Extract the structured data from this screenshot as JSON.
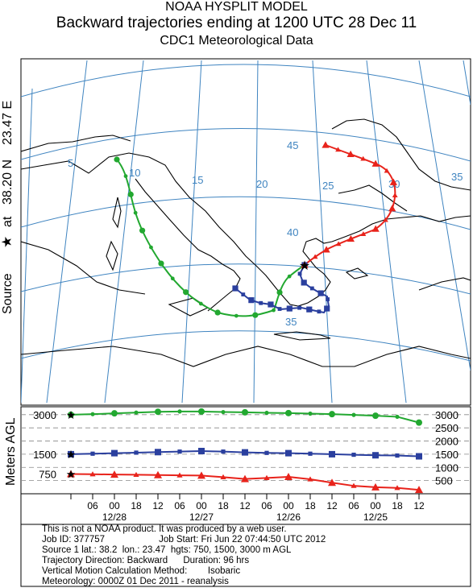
{
  "header": {
    "line1": "NOAA HYSPLIT MODEL",
    "line2": "Backward trajectories ending at 1200 UTC 28 Dec 11",
    "line3": "CDC1 Meteorological Data"
  },
  "side_label": {
    "source": "Source",
    "at": "at",
    "lat": "38.20 N",
    "lon": "23.47 E",
    "vertical_axis": "Meters AGL"
  },
  "map_grid_labels": {
    "longitudes": [
      "5",
      "10",
      "15",
      "20",
      "25",
      "30",
      "35"
    ],
    "latitudes": [
      "45",
      "40",
      "35"
    ]
  },
  "colors": {
    "trajectory_750": "#e8231b",
    "trajectory_1500": "#2a3f9e",
    "trajectory_3000": "#22a830",
    "grid": "#3f84c0",
    "coast": "#000000"
  },
  "chart_data": {
    "type": "line",
    "x_axis_labels": [
      "06",
      "00",
      "18",
      "12",
      "06",
      "00",
      "18",
      "12",
      "06",
      "00",
      "18",
      "12",
      "06",
      "00",
      "18",
      "12"
    ],
    "date_labels": [
      "12/28",
      "12/27",
      "12/26",
      "12/25"
    ],
    "left_tick_labels": [
      "3000",
      "1500",
      "750"
    ],
    "right_tick_labels": [
      "3000",
      "2500",
      "2000",
      "1500",
      "1000",
      "500"
    ],
    "ylim": [
      0,
      3300
    ],
    "series": [
      {
        "name": "3000",
        "color": "#22a830",
        "marker": "circle",
        "hours": [
          0,
          6,
          12,
          18,
          24,
          30,
          36,
          42,
          48,
          54,
          60,
          66,
          72,
          78,
          84,
          90,
          96
        ],
        "values": [
          3000,
          3020,
          3050,
          3080,
          3110,
          3120,
          3120,
          3100,
          3090,
          3070,
          3060,
          3040,
          3020,
          2990,
          2960,
          2920,
          2700
        ]
      },
      {
        "name": "1500",
        "color": "#2a3f9e",
        "marker": "square",
        "hours": [
          0,
          6,
          12,
          18,
          24,
          30,
          36,
          42,
          48,
          54,
          60,
          66,
          72,
          78,
          84,
          90,
          96
        ],
        "values": [
          1500,
          1520,
          1540,
          1560,
          1580,
          1600,
          1620,
          1600,
          1570,
          1550,
          1540,
          1520,
          1500,
          1480,
          1460,
          1450,
          1420
        ]
      },
      {
        "name": "750",
        "color": "#e8231b",
        "marker": "triangle",
        "hours": [
          0,
          6,
          12,
          18,
          24,
          30,
          36,
          42,
          48,
          54,
          60,
          66,
          72,
          78,
          84,
          90,
          96
        ],
        "values": [
          750,
          740,
          730,
          720,
          710,
          700,
          690,
          630,
          560,
          600,
          640,
          550,
          420,
          300,
          250,
          220,
          150
        ]
      }
    ]
  },
  "footer": {
    "line1": "This is not a NOAA product. It was produced by a web user.",
    "line2": "Job ID: 377757                     Job Start: Fri Jun 22 07:44:50 UTC 2012",
    "line3": "Source 1 lat.: 38.2  lon.: 23.47  hgts: 750, 1500, 3000 m AGL",
    "line4": "Trajectory Direction: Backward      Duration: 96 hrs",
    "line5": "Vertical Motion Calculation Method:        Isobaric",
    "line6": "Meteorology: 0000Z 01 Dec 2011 - reanalysis"
  }
}
